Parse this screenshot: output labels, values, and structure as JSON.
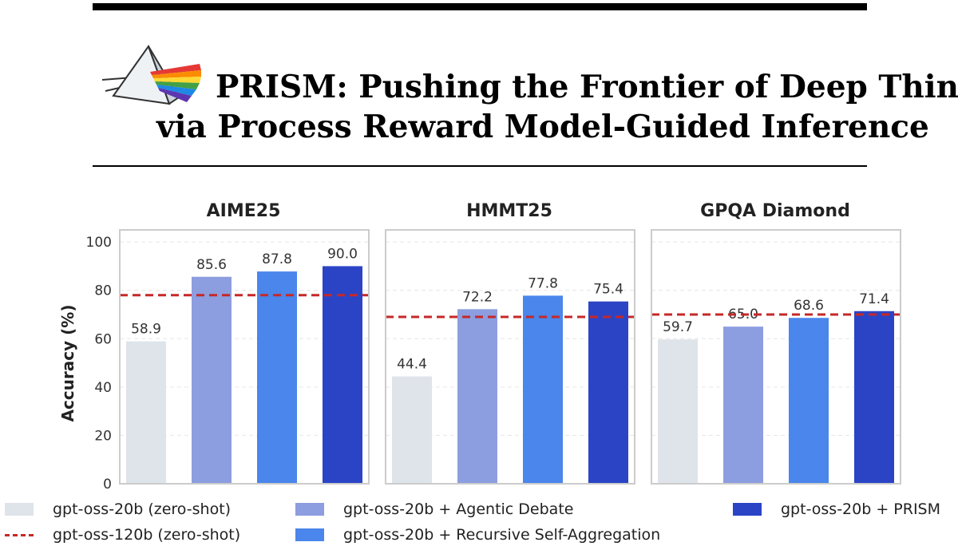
{
  "header": {
    "title_line1": "PRISM: Pushing the Frontier of Deep Think",
    "title_line2": "via Process Reward Model-Guided Inference",
    "logo_name": "prism-logo"
  },
  "colors": {
    "zero_shot_20b": "#dfe3ea",
    "agentic_debate": "#8c9ee0",
    "recursive_self_agg": "#4a86eb",
    "prism": "#2b44c6",
    "baseline_120b": "#c62828"
  },
  "chart_data": {
    "type": "bar",
    "ylabel": "Accuracy (%)",
    "ylim": [
      0,
      105
    ],
    "yticks": [
      0,
      20,
      40,
      60,
      80,
      100
    ],
    "grid": true,
    "panels": [
      {
        "title": "AIME25",
        "values": [
          58.9,
          85.6,
          87.8,
          90.0
        ],
        "labels": [
          "58.9",
          "85.6",
          "87.8",
          "90.0"
        ],
        "baseline": 78.0
      },
      {
        "title": "HMMT25",
        "values": [
          44.4,
          72.2,
          77.8,
          75.4
        ],
        "labels": [
          "44.4",
          "72.2",
          "77.8",
          "75.4"
        ],
        "baseline": 69.0
      },
      {
        "title": "GPQA Diamond",
        "values": [
          59.7,
          65.0,
          68.6,
          71.4
        ],
        "labels": [
          "59.7",
          "65.0",
          "68.6",
          "71.4"
        ],
        "baseline": 70.0
      }
    ],
    "series": [
      {
        "name": "gpt-oss-20b (zero-shot)",
        "color_key": "zero_shot_20b"
      },
      {
        "name": "gpt-oss-20b + Agentic Debate",
        "color_key": "agentic_debate"
      },
      {
        "name": "gpt-oss-20b + Recursive Self-Aggregation",
        "color_key": "recursive_self_agg"
      },
      {
        "name": "gpt-oss-20b + PRISM",
        "color_key": "prism"
      }
    ],
    "baseline_series": {
      "name": "gpt-oss-120b (zero-shot)",
      "style": "dashed",
      "color_key": "baseline_120b"
    },
    "legend_position": "bottom"
  },
  "legend": {
    "zero_shot": "gpt-oss-20b (zero-shot)",
    "baseline": "gpt-oss-120b (zero-shot)",
    "debate": "gpt-oss-20b + Agentic Debate",
    "rsa": "gpt-oss-20b + Recursive Self-Aggregation",
    "prism": "gpt-oss-20b + PRISM"
  }
}
